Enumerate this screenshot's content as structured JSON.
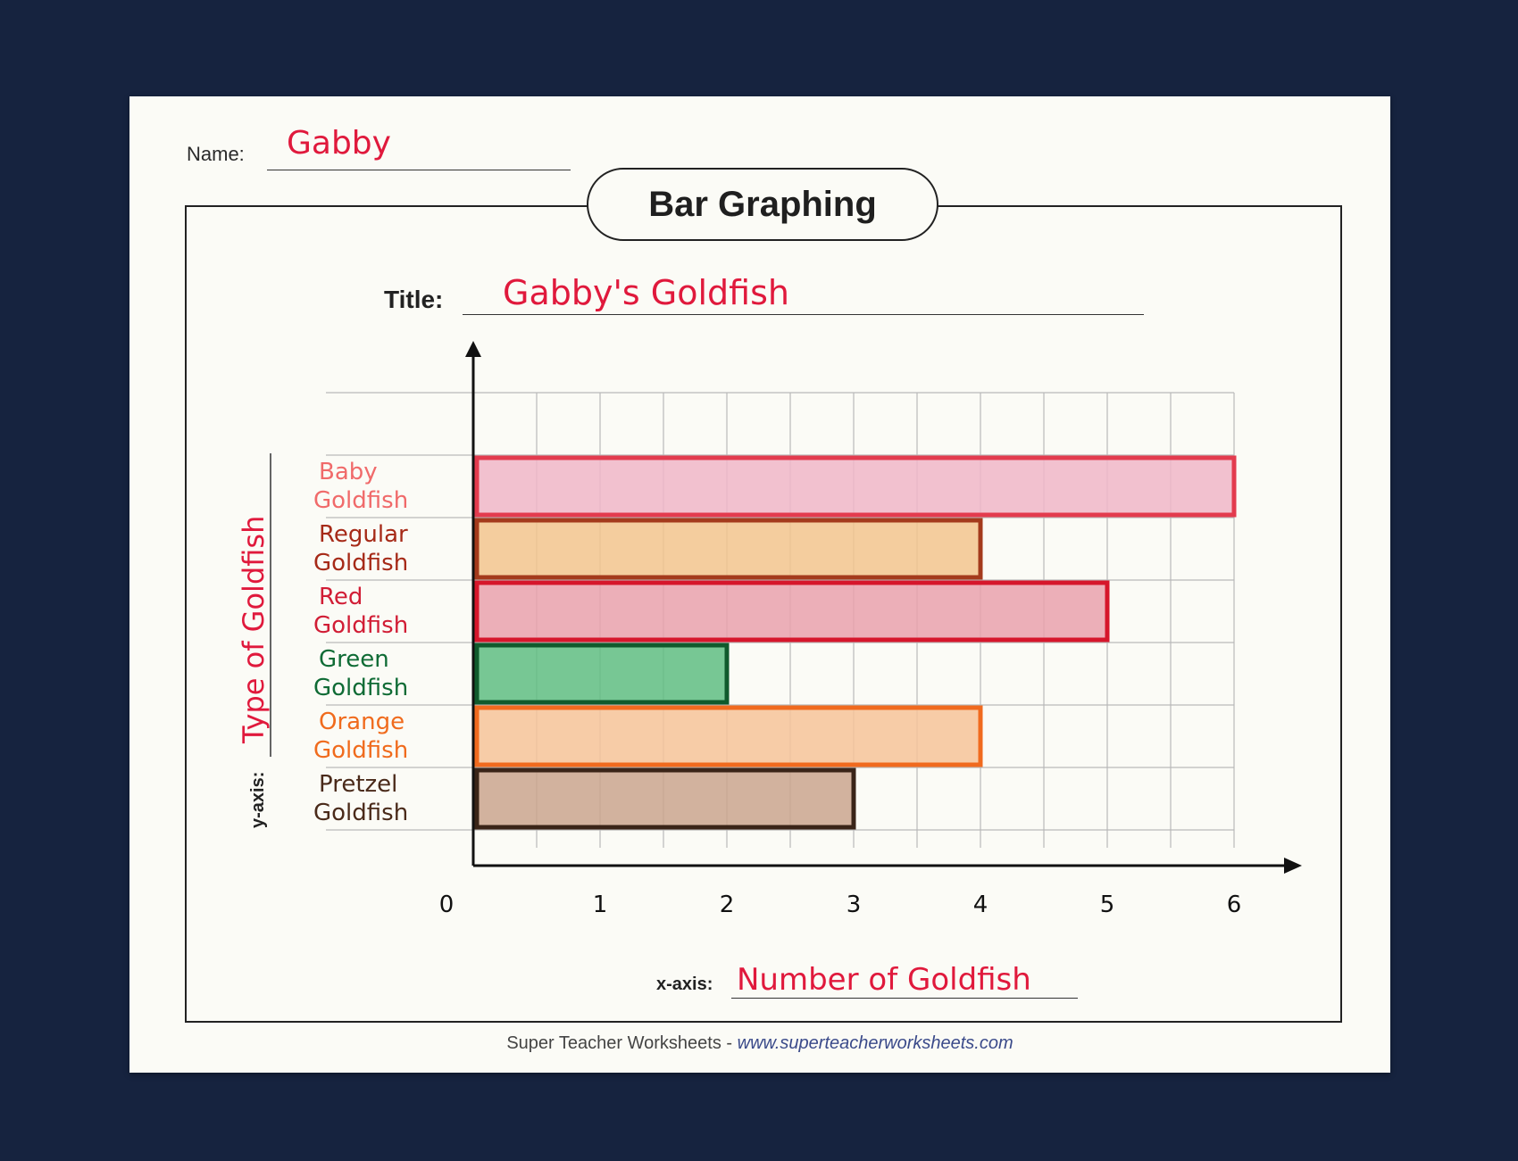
{
  "worksheet": {
    "name_label": "Name:",
    "name_value": "Gabby",
    "banner": "Bar Graphing",
    "title_label": "Title:",
    "title_value": "Gabby's Goldfish",
    "y_axis_label": "y-axis:",
    "y_axis_value": "Type of Goldfish",
    "x_axis_label": "x-axis:",
    "x_axis_value": "Number of Goldfish",
    "footer_brand": "Super Teacher Worksheets",
    "footer_sep": " - ",
    "footer_url": "www.superteacherworksheets.com"
  },
  "chart_data": {
    "type": "bar",
    "orientation": "horizontal",
    "title": "Gabby's Goldfish",
    "xlabel": "Number of Goldfish",
    "ylabel": "Type of Goldfish",
    "xlim": [
      0,
      6
    ],
    "x_ticks": [
      "0",
      "1",
      "2",
      "3",
      "4",
      "5",
      "6"
    ],
    "grid": true,
    "categories": [
      "Baby Goldfish",
      "Regular Goldfish",
      "Red Goldfish",
      "Green Goldfish",
      "Orange Goldfish",
      "Pretzel Goldfish"
    ],
    "values": [
      6,
      4,
      5,
      2,
      4,
      3
    ],
    "fill_colors": [
      "#f0b6c8",
      "#f2c48e",
      "#e9a1ad",
      "#5fbd83",
      "#f6c399",
      "#caa48e"
    ],
    "border_colors": [
      "#e33b4e",
      "#a43a1c",
      "#d6162b",
      "#0f5a2c",
      "#f06a1e",
      "#3a2418"
    ],
    "label_colors": [
      "#f06a6a",
      "#a62a18",
      "#d11d35",
      "#0f6b35",
      "#f06b1d",
      "#4a2a1a"
    ]
  }
}
